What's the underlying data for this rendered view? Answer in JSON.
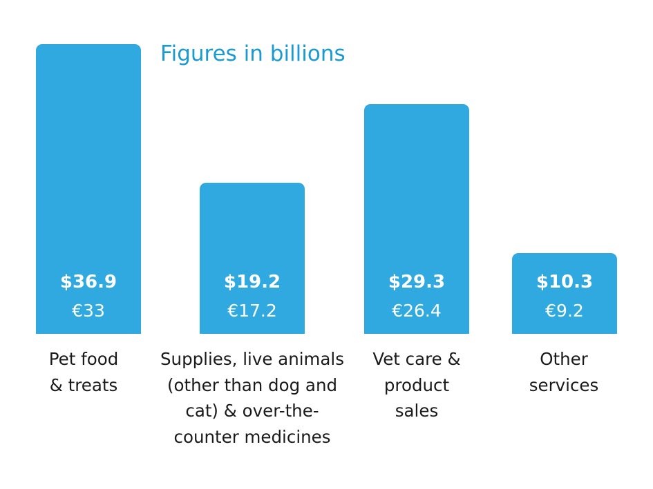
{
  "chart_data": {
    "type": "bar",
    "title": "Figures in billions",
    "xlabel": "",
    "ylabel": "",
    "ylim": [
      0,
      36.9
    ],
    "grid": false,
    "categories": [
      [
        "Pet food",
        "& treats"
      ],
      [
        "Supplies, live animals",
        "(other than dog and",
        "cat) & over-the-",
        "counter medicines"
      ],
      [
        "Vet care &",
        "product",
        "sales"
      ],
      [
        "Other",
        "services"
      ]
    ],
    "series": [
      {
        "values": [
          36.9,
          19.2,
          29.3,
          10.3
        ],
        "labels": [
          "$36.9",
          "$19.2",
          "$29.3",
          "$10.3"
        ]
      },
      {
        "values": [
          33,
          17.2,
          26.4,
          9.2
        ],
        "labels": [
          "€33",
          "€17.2",
          "€26.4",
          "€9.2"
        ]
      }
    ],
    "colors": {
      "bar": "#30a9e0",
      "title": "#1a9ad3",
      "bar_text": "#ffffff",
      "category_text": "#1a1a1a"
    }
  }
}
